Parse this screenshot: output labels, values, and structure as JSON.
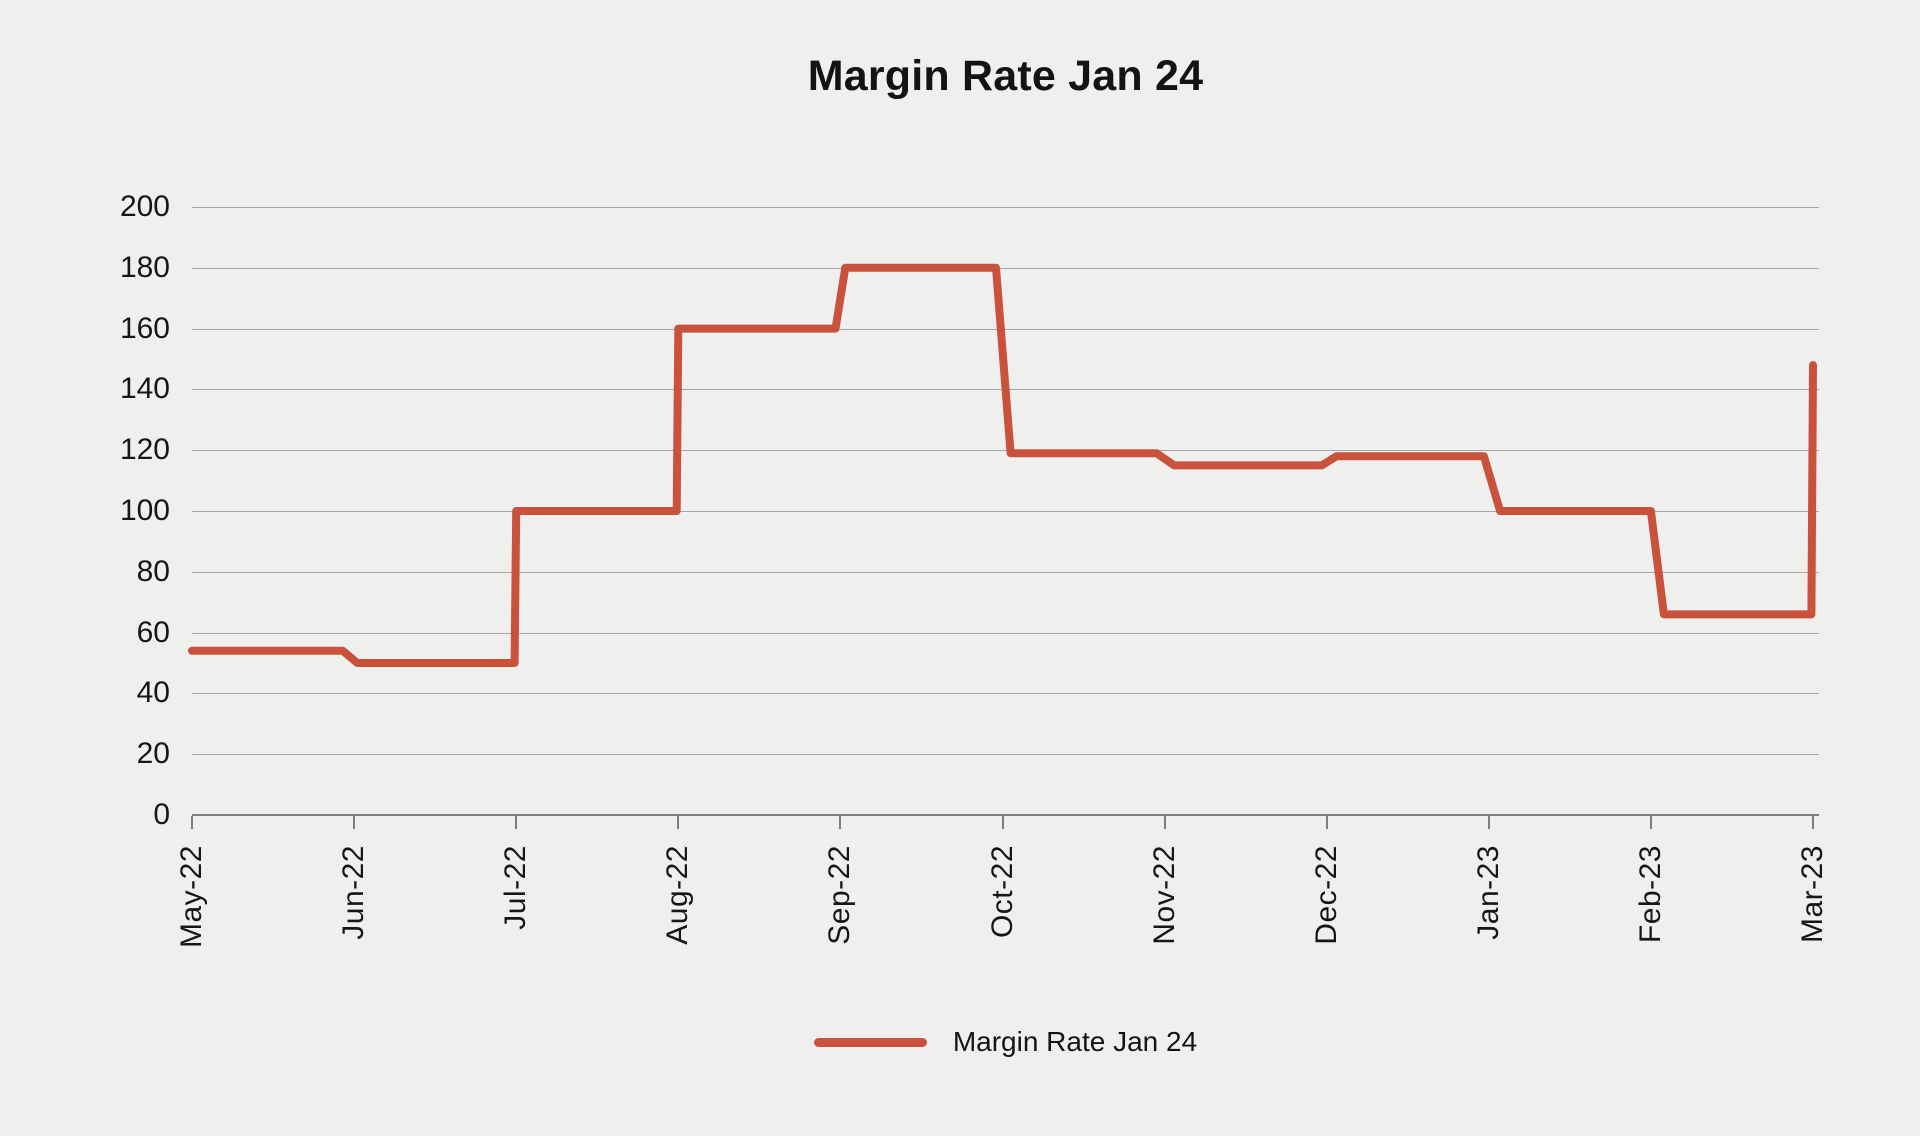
{
  "title": "Margin Rate Jan 24",
  "legend": {
    "label": "Margin Rate Jan 24"
  },
  "colors": {
    "background": "#eff0ee",
    "line": "#c8523c",
    "gridline": "#a7a7a5",
    "axis": "#7d7d7b",
    "text": "#161616"
  },
  "chart_data": {
    "type": "line",
    "title": "Margin Rate Jan 24",
    "categories": [
      "May-22",
      "Jun-22",
      "Jul-22",
      "Aug-22",
      "Sep-22",
      "Oct-22",
      "Nov-22",
      "Dec-22",
      "Jan-23",
      "Feb-23",
      "Mar-23"
    ],
    "series": [
      {
        "name": "Margin Rate Jan 24",
        "values": [
          54,
          50,
          100,
          160,
          180,
          119,
          115,
          118,
          100,
          66,
          148
        ]
      }
    ],
    "xlabel": "",
    "ylabel": "",
    "ylim": [
      0,
      200
    ],
    "ytick_step": 20,
    "yticks": [
      0,
      20,
      40,
      60,
      80,
      100,
      120,
      140,
      160,
      180,
      200
    ],
    "grid": true,
    "legend_position": "bottom",
    "line_style": "step-at-month-boundaries",
    "points": [
      [
        0,
        54
      ],
      [
        0.93,
        54
      ],
      [
        1.02,
        50
      ],
      [
        1.99,
        50
      ],
      [
        2.0,
        100
      ],
      [
        2.99,
        100
      ],
      [
        3.0,
        160
      ],
      [
        3.97,
        160
      ],
      [
        4.03,
        180
      ],
      [
        4.96,
        180
      ],
      [
        5.05,
        119
      ],
      [
        5.95,
        119
      ],
      [
        6.06,
        115
      ],
      [
        6.97,
        115
      ],
      [
        7.06,
        118
      ],
      [
        7.97,
        118
      ],
      [
        8.07,
        100
      ],
      [
        9.0,
        100
      ],
      [
        9.08,
        66
      ],
      [
        9.99,
        66
      ],
      [
        10.0,
        148
      ]
    ]
  }
}
